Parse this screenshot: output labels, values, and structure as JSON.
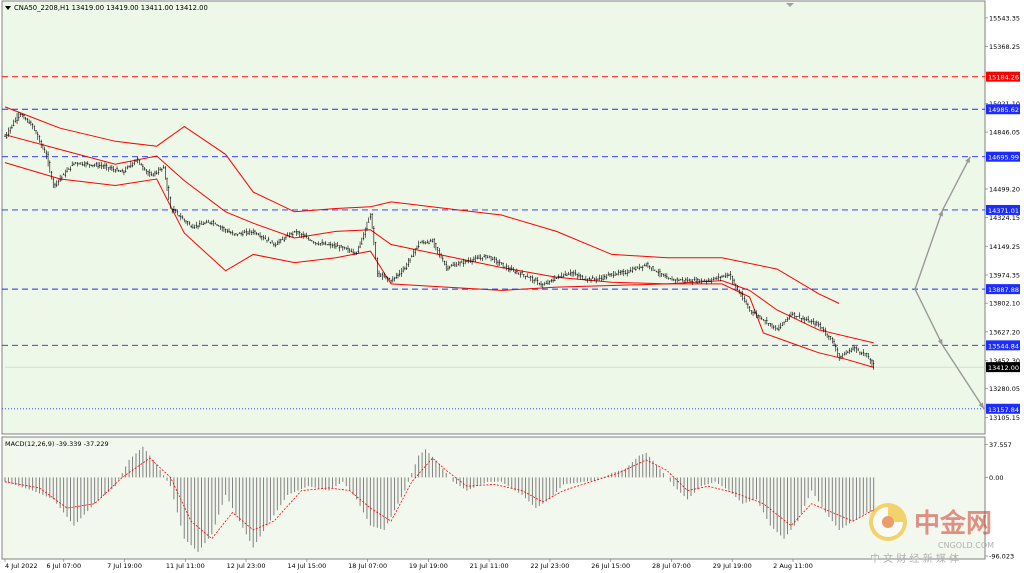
{
  "header": {
    "symbol_info": "CNA50_2208,H1  13419.00 13419.00 13411.00 13412.00",
    "menu_icon": "triangle-down-icon"
  },
  "colors": {
    "price_bg": "#eef8e8",
    "osc_bg": "#f3f8ef",
    "candle": "#000000",
    "bands": "#ff0000",
    "level_blue": "#1c2cff",
    "level_red": "#ff0000",
    "arrow": "#999999",
    "macd_hist": "#808080",
    "macd_signal": "#ff0000"
  },
  "chart_data": [
    {
      "type": "candlestick",
      "symbol": "CNA50_2208",
      "timeframe": "H1",
      "last_price": 13412.0,
      "ylim": [
        13010,
        15640
      ],
      "y_ticks": [
        "15543.35",
        "15368.25",
        "15021.10",
        "14846.05",
        "14499.20",
        "14324.15",
        "14149.25",
        "13974.35",
        "13802.10",
        "13627.20",
        "13452.30",
        "13280.05",
        "13105.15"
      ],
      "x_ticks": [
        "4 Jul 2022",
        "6 Jul 07:00",
        "7 Jul 19:00",
        "11 Jul 11:00",
        "12 Jul 23:00",
        "14 Jul 15:00",
        "18 Jul 07:00",
        "19 Jul 19:00",
        "21 Jul 11:00",
        "22 Jul 23:00",
        "26 Jul 15:00",
        "28 Jul 07:00",
        "29 Jul 19:00",
        "2 Aug 11:00"
      ],
      "price_path": [
        [
          0,
          14820
        ],
        [
          2,
          14960
        ],
        [
          4,
          14880
        ],
        [
          6,
          14700
        ],
        [
          7,
          14520
        ],
        [
          10,
          14660
        ],
        [
          14,
          14640
        ],
        [
          17,
          14600
        ],
        [
          19,
          14680
        ],
        [
          21,
          14580
        ],
        [
          23,
          14630
        ],
        [
          24,
          14380
        ],
        [
          27,
          14270
        ],
        [
          30,
          14300
        ],
        [
          33,
          14220
        ],
        [
          36,
          14240
        ],
        [
          39,
          14160
        ],
        [
          42,
          14240
        ],
        [
          45,
          14170
        ],
        [
          48,
          14150
        ],
        [
          51,
          14110
        ],
        [
          53,
          14350
        ],
        [
          54,
          13980
        ],
        [
          56,
          13940
        ],
        [
          58,
          14020
        ],
        [
          60,
          14170
        ],
        [
          62,
          14180
        ],
        [
          64,
          14020
        ],
        [
          67,
          14060
        ],
        [
          70,
          14090
        ],
        [
          73,
          14010
        ],
        [
          76,
          13960
        ],
        [
          78,
          13910
        ],
        [
          80,
          13960
        ],
        [
          82,
          13990
        ],
        [
          84,
          13950
        ],
        [
          86,
          13950
        ],
        [
          88,
          13980
        ],
        [
          90,
          13990
        ],
        [
          93,
          14040
        ],
        [
          96,
          13950
        ],
        [
          99,
          13940
        ],
        [
          102,
          13940
        ],
        [
          105,
          13980
        ],
        [
          106,
          13900
        ],
        [
          108,
          13760
        ],
        [
          110,
          13700
        ],
        [
          112,
          13640
        ],
        [
          114,
          13740
        ],
        [
          116,
          13700
        ],
        [
          118,
          13670
        ],
        [
          120,
          13570
        ],
        [
          121,
          13470
        ],
        [
          123,
          13530
        ],
        [
          125,
          13480
        ],
        [
          126,
          13412
        ]
      ],
      "n_bars": 126,
      "bands": {
        "upper": [
          [
            0,
            15000
          ],
          [
            8,
            14870
          ],
          [
            16,
            14790
          ],
          [
            22,
            14760
          ],
          [
            26,
            14880
          ],
          [
            32,
            14710
          ],
          [
            36,
            14480
          ],
          [
            42,
            14360
          ],
          [
            48,
            14380
          ],
          [
            53,
            14390
          ],
          [
            56,
            14420
          ],
          [
            64,
            14380
          ],
          [
            72,
            14340
          ],
          [
            80,
            14240
          ],
          [
            88,
            14100
          ],
          [
            96,
            14080
          ],
          [
            104,
            14080
          ],
          [
            112,
            14010
          ],
          [
            118,
            13860
          ],
          [
            121,
            13800
          ]
        ],
        "middle": [
          [
            0,
            14830
          ],
          [
            8,
            14740
          ],
          [
            16,
            14650
          ],
          [
            22,
            14700
          ],
          [
            26,
            14550
          ],
          [
            32,
            14360
          ],
          [
            36,
            14290
          ],
          [
            42,
            14200
          ],
          [
            48,
            14240
          ],
          [
            53,
            14250
          ],
          [
            56,
            14160
          ],
          [
            64,
            14090
          ],
          [
            72,
            14020
          ],
          [
            80,
            13960
          ],
          [
            88,
            13930
          ],
          [
            96,
            13920
          ],
          [
            104,
            13940
          ],
          [
            108,
            13880
          ],
          [
            112,
            13760
          ],
          [
            118,
            13640
          ],
          [
            126,
            13560
          ]
        ],
        "lower": [
          [
            0,
            14660
          ],
          [
            8,
            14560
          ],
          [
            16,
            14520
          ],
          [
            22,
            14560
          ],
          [
            26,
            14230
          ],
          [
            32,
            14000
          ],
          [
            36,
            14100
          ],
          [
            42,
            14050
          ],
          [
            48,
            14080
          ],
          [
            53,
            14120
          ],
          [
            56,
            13920
          ],
          [
            64,
            13900
          ],
          [
            72,
            13880
          ],
          [
            80,
            13900
          ],
          [
            88,
            13910
          ],
          [
            96,
            13920
          ],
          [
            104,
            13920
          ],
          [
            108,
            13840
          ],
          [
            110,
            13620
          ],
          [
            114,
            13560
          ],
          [
            118,
            13500
          ],
          [
            122,
            13460
          ],
          [
            126,
            13410
          ]
        ]
      },
      "levels": [
        {
          "label": "15184.26",
          "value": 15184.26,
          "color": "red",
          "style": "dashed"
        },
        {
          "label": "14985.62",
          "value": 14985.62,
          "color": "blue",
          "style": "dashed"
        },
        {
          "label": "14695.99",
          "value": 14695.99,
          "color": "blue",
          "style": "dashed"
        },
        {
          "label": "14371.01",
          "value": 14371.01,
          "color": "blue",
          "style": "dashed"
        },
        {
          "label": "13887.88",
          "value": 13887.88,
          "color": "blue",
          "style": "dashed"
        },
        {
          "label": "13544.84",
          "value": 13544.84,
          "color": "blue",
          "style": "dashed"
        },
        {
          "label": "13157.84",
          "value": 13157.84,
          "color": "blue",
          "style": "dotted"
        }
      ],
      "scenario_arrows": [
        {
          "from": [
            132,
            13887.88
          ],
          "to": [
            136,
            14371.01
          ]
        },
        {
          "from": [
            136,
            14371.01
          ],
          "to": [
            140,
            14695.99
          ]
        },
        {
          "from": [
            132,
            13887.88
          ],
          "to": [
            136,
            13544.84
          ]
        },
        {
          "from": [
            136,
            13544.84
          ],
          "to": [
            142,
            13157.84
          ]
        }
      ]
    },
    {
      "type": "bar",
      "title": "MACD(12,26,9) -39.339 -37.229",
      "ylim": [
        -92,
        45
      ],
      "y_ticks": [
        "37.557",
        "0.00",
        "-96.023"
      ],
      "histogram_path": [
        [
          0,
          -5
        ],
        [
          4,
          -15
        ],
        [
          7,
          -25
        ],
        [
          10,
          -55
        ],
        [
          13,
          -30
        ],
        [
          16,
          -10
        ],
        [
          18,
          20
        ],
        [
          20,
          35
        ],
        [
          22,
          15
        ],
        [
          24,
          -10
        ],
        [
          26,
          -70
        ],
        [
          28,
          -85
        ],
        [
          30,
          -65
        ],
        [
          32,
          -20
        ],
        [
          34,
          -50
        ],
        [
          36,
          -80
        ],
        [
          38,
          -55
        ],
        [
          41,
          -20
        ],
        [
          44,
          -10
        ],
        [
          47,
          -15
        ],
        [
          49,
          -5
        ],
        [
          51,
          -25
        ],
        [
          53,
          -55
        ],
        [
          55,
          -60
        ],
        [
          58,
          -15
        ],
        [
          60,
          25
        ],
        [
          61,
          32
        ],
        [
          63,
          15
        ],
        [
          65,
          -5
        ],
        [
          67,
          -15
        ],
        [
          70,
          -5
        ],
        [
          72,
          -5
        ],
        [
          75,
          -20
        ],
        [
          77,
          -35
        ],
        [
          79,
          -25
        ],
        [
          81,
          -8
        ],
        [
          84,
          -5
        ],
        [
          86,
          -3
        ],
        [
          88,
          5
        ],
        [
          90,
          10
        ],
        [
          92,
          25
        ],
        [
          93,
          28
        ],
        [
          95,
          10
        ],
        [
          97,
          -10
        ],
        [
          99,
          -25
        ],
        [
          101,
          -10
        ],
        [
          103,
          -5
        ],
        [
          105,
          -15
        ],
        [
          107,
          -30
        ],
        [
          109,
          -25
        ],
        [
          111,
          -55
        ],
        [
          113,
          -70
        ],
        [
          115,
          -50
        ],
        [
          117,
          -15
        ],
        [
          119,
          -40
        ],
        [
          121,
          -60
        ],
        [
          123,
          -50
        ],
        [
          125,
          -40
        ],
        [
          126,
          -39
        ]
      ],
      "signal_path": [
        [
          0,
          -5
        ],
        [
          5,
          -12
        ],
        [
          9,
          -35
        ],
        [
          13,
          -30
        ],
        [
          17,
          0
        ],
        [
          21,
          22
        ],
        [
          24,
          0
        ],
        [
          27,
          -50
        ],
        [
          30,
          -70
        ],
        [
          33,
          -40
        ],
        [
          36,
          -60
        ],
        [
          39,
          -50
        ],
        [
          43,
          -15
        ],
        [
          47,
          -12
        ],
        [
          50,
          -15
        ],
        [
          53,
          -35
        ],
        [
          56,
          -50
        ],
        [
          59,
          -5
        ],
        [
          62,
          22
        ],
        [
          64,
          8
        ],
        [
          67,
          -10
        ],
        [
          71,
          -8
        ],
        [
          75,
          -15
        ],
        [
          78,
          -28
        ],
        [
          81,
          -15
        ],
        [
          85,
          -5
        ],
        [
          89,
          5
        ],
        [
          93,
          20
        ],
        [
          96,
          8
        ],
        [
          99,
          -15
        ],
        [
          102,
          -10
        ],
        [
          106,
          -18
        ],
        [
          110,
          -30
        ],
        [
          114,
          -55
        ],
        [
          117,
          -30
        ],
        [
          120,
          -40
        ],
        [
          123,
          -50
        ],
        [
          126,
          -37
        ]
      ]
    }
  ],
  "watermark": {
    "brand_cn": "中金网",
    "brand_url": "CNGOLD.COM",
    "tagline": "中 文 财 经 新 媒 体"
  }
}
